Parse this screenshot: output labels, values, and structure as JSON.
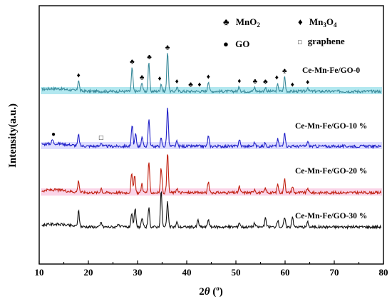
{
  "chart_data": {
    "type": "line",
    "xlabel_prefix": "2",
    "xlabel_symbol": "θ",
    "xlabel_unit_open": " (",
    "xlabel_unit_deg": "o",
    "xlabel_unit_close": ")",
    "ylabel": "Intensity(a.u.)",
    "xlim": [
      10,
      80
    ],
    "x_ticks": [
      10,
      20,
      30,
      40,
      50,
      60,
      70,
      80
    ],
    "grid": false,
    "legend": [
      {
        "symbol": "♣",
        "label_main": "MnO",
        "label_sub": "2",
        "label_tail": "",
        "label_sub2": "",
        "label_end": ""
      },
      {
        "symbol": "♦",
        "label_main": "Mn",
        "label_sub": "3",
        "label_tail": "O",
        "label_sub2": "4",
        "label_end": ""
      },
      {
        "symbol": "●",
        "label_main": "GO",
        "label_sub": "",
        "label_tail": "",
        "label_sub2": "",
        "label_end": ""
      },
      {
        "symbol": "□",
        "label_main": "graphene",
        "label_sub": "",
        "label_tail": "",
        "label_sub2": "",
        "label_end": ""
      }
    ],
    "series": [
      {
        "name": "Ce-Mn-Fe/GO-0",
        "color": "#3a8a9a",
        "band": "#7fd8e6",
        "baseline": 0.8,
        "peaks": [
          {
            "x": 18.0,
            "h": 1.4
          },
          {
            "x": 28.9,
            "h": 3.0
          },
          {
            "x": 30.9,
            "h": 1.2
          },
          {
            "x": 32.3,
            "h": 3.6
          },
          {
            "x": 34.8,
            "h": 1.0
          },
          {
            "x": 36.1,
            "h": 5.2
          },
          {
            "x": 38.0,
            "h": 0.5
          },
          {
            "x": 44.4,
            "h": 1.3
          },
          {
            "x": 50.7,
            "h": 0.6
          },
          {
            "x": 53.8,
            "h": 0.5
          },
          {
            "x": 56.0,
            "h": 0.5
          },
          {
            "x": 58.5,
            "h": 0.9
          },
          {
            "x": 59.9,
            "h": 1.9
          },
          {
            "x": 64.6,
            "h": 0.5
          }
        ],
        "markers": [
          {
            "x": 18.0,
            "s": "♦"
          },
          {
            "x": 28.9,
            "s": "♣"
          },
          {
            "x": 30.9,
            "s": "♣"
          },
          {
            "x": 32.4,
            "s": "♣"
          },
          {
            "x": 34.5,
            "s": "♦"
          },
          {
            "x": 36.1,
            "s": "♣"
          },
          {
            "x": 38.0,
            "s": "♦"
          },
          {
            "x": 40.8,
            "s": "♣"
          },
          {
            "x": 42.6,
            "s": "♦"
          },
          {
            "x": 44.4,
            "s": "♦"
          },
          {
            "x": 50.7,
            "s": "♦"
          },
          {
            "x": 53.9,
            "s": "♣"
          },
          {
            "x": 56.0,
            "s": "♣"
          },
          {
            "x": 58.3,
            "s": "♦"
          },
          {
            "x": 59.9,
            "s": "♣"
          },
          {
            "x": 61.5,
            "s": "♦"
          },
          {
            "x": 64.6,
            "s": "♦"
          }
        ]
      },
      {
        "name": "Ce-Mn-Fe/GO-10 %",
        "color": "#2020c8",
        "band": "#c8c8ff",
        "baseline": 0.8,
        "peaks": [
          {
            "x": 12.7,
            "h": 0.5
          },
          {
            "x": 18.0,
            "h": 1.4
          },
          {
            "x": 22.6,
            "h": 0.5
          },
          {
            "x": 28.9,
            "h": 2.8
          },
          {
            "x": 29.6,
            "h": 1.6
          },
          {
            "x": 30.9,
            "h": 1.2
          },
          {
            "x": 32.3,
            "h": 3.5
          },
          {
            "x": 34.8,
            "h": 1.0
          },
          {
            "x": 36.1,
            "h": 5.0
          },
          {
            "x": 38.0,
            "h": 0.6
          },
          {
            "x": 44.4,
            "h": 1.3
          },
          {
            "x": 50.7,
            "h": 0.9
          },
          {
            "x": 53.8,
            "h": 0.5
          },
          {
            "x": 56.0,
            "h": 0.5
          },
          {
            "x": 58.5,
            "h": 0.9
          },
          {
            "x": 59.9,
            "h": 1.9
          },
          {
            "x": 64.6,
            "h": 0.6
          }
        ],
        "markers": [
          {
            "x": 12.9,
            "s": "●"
          },
          {
            "x": 22.6,
            "s": "□"
          }
        ]
      },
      {
        "name": "Ce-Mn-Fe/GO-20 %",
        "color": "#c02010",
        "band": "#f7b8d8",
        "baseline": 1.0,
        "peaks": [
          {
            "x": 18.0,
            "h": 1.5
          },
          {
            "x": 22.6,
            "h": 0.6
          },
          {
            "x": 28.8,
            "h": 2.4
          },
          {
            "x": 29.4,
            "h": 2.2
          },
          {
            "x": 30.9,
            "h": 1.2
          },
          {
            "x": 32.3,
            "h": 3.8
          },
          {
            "x": 34.8,
            "h": 3.2
          },
          {
            "x": 36.1,
            "h": 5.2
          },
          {
            "x": 38.0,
            "h": 0.6
          },
          {
            "x": 44.4,
            "h": 1.4
          },
          {
            "x": 50.7,
            "h": 0.8
          },
          {
            "x": 53.8,
            "h": 0.5
          },
          {
            "x": 56.0,
            "h": 0.6
          },
          {
            "x": 58.5,
            "h": 1.1
          },
          {
            "x": 59.9,
            "h": 1.9
          },
          {
            "x": 61.5,
            "h": 0.8
          },
          {
            "x": 64.6,
            "h": 0.6
          }
        ],
        "markers": []
      },
      {
        "name": "Ce-Mn-Fe/GO-30 %",
        "color": "#111111",
        "band": "",
        "baseline": 1.0,
        "peaks": [
          {
            "x": 18.0,
            "h": 2.0
          },
          {
            "x": 22.6,
            "h": 0.6
          },
          {
            "x": 26.0,
            "h": 0.4
          },
          {
            "x": 28.8,
            "h": 1.8
          },
          {
            "x": 29.5,
            "h": 2.4
          },
          {
            "x": 30.9,
            "h": 1.1
          },
          {
            "x": 32.3,
            "h": 2.4
          },
          {
            "x": 34.8,
            "h": 4.6
          },
          {
            "x": 36.1,
            "h": 3.2
          },
          {
            "x": 38.0,
            "h": 0.6
          },
          {
            "x": 42.3,
            "h": 0.9
          },
          {
            "x": 44.4,
            "h": 1.0
          },
          {
            "x": 50.7,
            "h": 0.6
          },
          {
            "x": 53.8,
            "h": 0.5
          },
          {
            "x": 56.0,
            "h": 1.1
          },
          {
            "x": 58.5,
            "h": 0.9
          },
          {
            "x": 59.9,
            "h": 1.2
          },
          {
            "x": 61.5,
            "h": 1.4
          },
          {
            "x": 64.6,
            "h": 0.6
          }
        ],
        "markers": []
      }
    ]
  }
}
